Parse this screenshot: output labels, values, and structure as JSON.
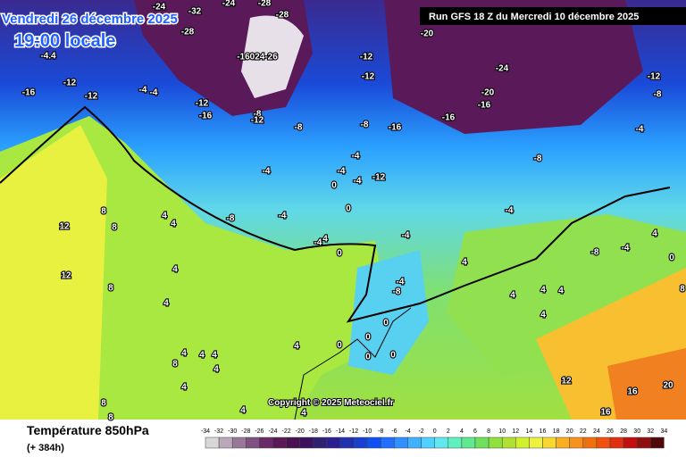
{
  "header": {
    "date": "Vendredi 26 décembre 2025",
    "time": "19:00 locale",
    "run": "Run GFS 18 Z du Mercredi 10 décembre 2025"
  },
  "copyright": "Copyright © 2025 Meteociel.fr",
  "footer": {
    "title": "Température 850hPa",
    "lead": "(+ 384h)"
  },
  "colorbar": {
    "ticks": [
      "-34",
      "-32",
      "-30",
      "-28",
      "-26",
      "-24",
      "-22",
      "-20",
      "-18",
      "-16",
      "-14",
      "-12",
      "-10",
      "-8",
      "-6",
      "-4",
      "-2",
      "0",
      "2",
      "4",
      "6",
      "8",
      "10",
      "12",
      "14",
      "16",
      "18",
      "20",
      "22",
      "24",
      "26",
      "28",
      "30",
      "32",
      "34"
    ],
    "colors": [
      "#d8d8d8",
      "#b8a8b8",
      "#987898",
      "#805080",
      "#6a2a6a",
      "#5a1a5a",
      "#4a1050",
      "#3a1060",
      "#302070",
      "#282090",
      "#2030b0",
      "#1a40d0",
      "#1050f0",
      "#2070ff",
      "#3090ff",
      "#40b0ff",
      "#50d0ff",
      "#60e8f0",
      "#60f0c0",
      "#60e890",
      "#70e060",
      "#90e040",
      "#b0e030",
      "#d0f030",
      "#f0f040",
      "#f8d830",
      "#f8b020",
      "#f89020",
      "#f07010",
      "#f05010",
      "#e03010",
      "#c01010",
      "#901010",
      "#500808"
    ]
  },
  "map_labels": [
    "-24",
    "-32",
    "-28",
    "-24",
    "-28",
    "-28",
    "-16024-26",
    "-4.4",
    "-12",
    "-12",
    "-24",
    "-20",
    "-16",
    "-12",
    "-12",
    "-4",
    "-4",
    "-12",
    "-16",
    "-8",
    "-12",
    "-20",
    "-16",
    "-16",
    "-12",
    "-8",
    "-4",
    "-8",
    "-16",
    "-8",
    "-4",
    "-8",
    "-4",
    "-4",
    "0",
    "-4",
    "-12",
    "0",
    "-4",
    "-8",
    "-4",
    "-4",
    "-4",
    "4",
    "0",
    "-4",
    "-8",
    "8",
    "4",
    "4",
    "8",
    "12",
    "12",
    "8",
    "4",
    "4",
    "4",
    "0",
    "0",
    "0",
    "0",
    "0",
    "4",
    "4",
    "4",
    "4",
    "4",
    "-8",
    "-4",
    "4",
    "0",
    "8",
    "4",
    "4",
    "4",
    "4",
    "8",
    "4",
    "12",
    "16",
    "20",
    "16",
    "4",
    "4",
    "8",
    "8"
  ]
}
